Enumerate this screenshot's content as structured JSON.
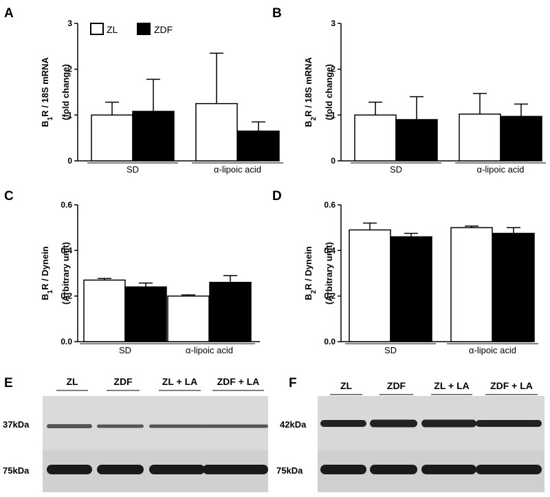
{
  "chart_data": [
    {
      "panel": "A",
      "type": "bar",
      "categories": [
        "SD",
        "α-lipoic acid"
      ],
      "ylabel_main": "B",
      "ylabel_sub": "1",
      "ylabel_rest": "R / 18S mRNA",
      "ylabel_line2": "(fold change)",
      "ylim": [
        0,
        3
      ],
      "yticks": [
        "0",
        "1",
        "2",
        "3"
      ],
      "series": [
        {
          "name": "ZL",
          "values": [
            1.0,
            1.25
          ],
          "errors": [
            0.28,
            1.1
          ]
        },
        {
          "name": "ZDF",
          "values": [
            1.08,
            0.65
          ],
          "errors": [
            0.7,
            0.2
          ]
        }
      ],
      "legend": "top-left"
    },
    {
      "panel": "B",
      "type": "bar",
      "categories": [
        "SD",
        "α-lipoic acid"
      ],
      "ylabel_main": "B",
      "ylabel_sub": "2",
      "ylabel_rest": "R / 18S mRNA",
      "ylabel_line2": "(fold change)",
      "ylim": [
        0,
        3
      ],
      "yticks": [
        "0",
        "1",
        "2",
        "3"
      ],
      "series": [
        {
          "name": "ZL",
          "values": [
            1.0,
            1.02
          ],
          "errors": [
            0.28,
            0.45
          ]
        },
        {
          "name": "ZDF",
          "values": [
            0.9,
            0.97
          ],
          "errors": [
            0.5,
            0.27
          ]
        }
      ]
    },
    {
      "panel": "C",
      "type": "bar",
      "categories": [
        "SD",
        "α-lipoic acid"
      ],
      "ylabel_main": "B",
      "ylabel_sub": "1",
      "ylabel_rest": "R / Dynein",
      "ylabel_line2": "(Arbitrary unit)",
      "ylim": [
        0,
        0.6
      ],
      "yticks": [
        "0.0",
        "0.2",
        "0.4",
        "0.6"
      ],
      "series": [
        {
          "name": "ZL",
          "values": [
            0.27,
            0.2
          ],
          "errors": [
            0.007,
            0.005
          ]
        },
        {
          "name": "ZDF",
          "values": [
            0.24,
            0.26
          ],
          "errors": [
            0.017,
            0.03
          ]
        }
      ]
    },
    {
      "panel": "D",
      "type": "bar",
      "categories": [
        "SD",
        "α-lipoic acid"
      ],
      "ylabel_main": "B",
      "ylabel_sub": "2",
      "ylabel_rest": "R / Dynein",
      "ylabel_line2": "(Arbitrary unit)",
      "ylim": [
        0,
        0.6
      ],
      "yticks": [
        "0.0",
        "0.2",
        "0.4",
        "0.6"
      ],
      "series": [
        {
          "name": "ZL",
          "values": [
            0.49,
            0.5
          ],
          "errors": [
            0.03,
            0.007
          ]
        },
        {
          "name": "ZDF",
          "values": [
            0.46,
            0.475
          ],
          "errors": [
            0.015,
            0.025
          ]
        }
      ]
    }
  ],
  "blots": [
    {
      "panel": "E",
      "lanes": [
        "ZL",
        "ZDF",
        "ZL + LA",
        "ZDF + LA"
      ],
      "markers": [
        "37kDa",
        "75kDa"
      ]
    },
    {
      "panel": "F",
      "lanes": [
        "ZL",
        "ZDF",
        "ZL + LA",
        "ZDF + LA"
      ],
      "markers": [
        "42kDa",
        "75kDa"
      ]
    }
  ],
  "colors": {
    "ZL": "#ffffff",
    "ZDF": "#000000",
    "blot_bg": "#d9d9d9",
    "band": "#1a1a1a"
  }
}
